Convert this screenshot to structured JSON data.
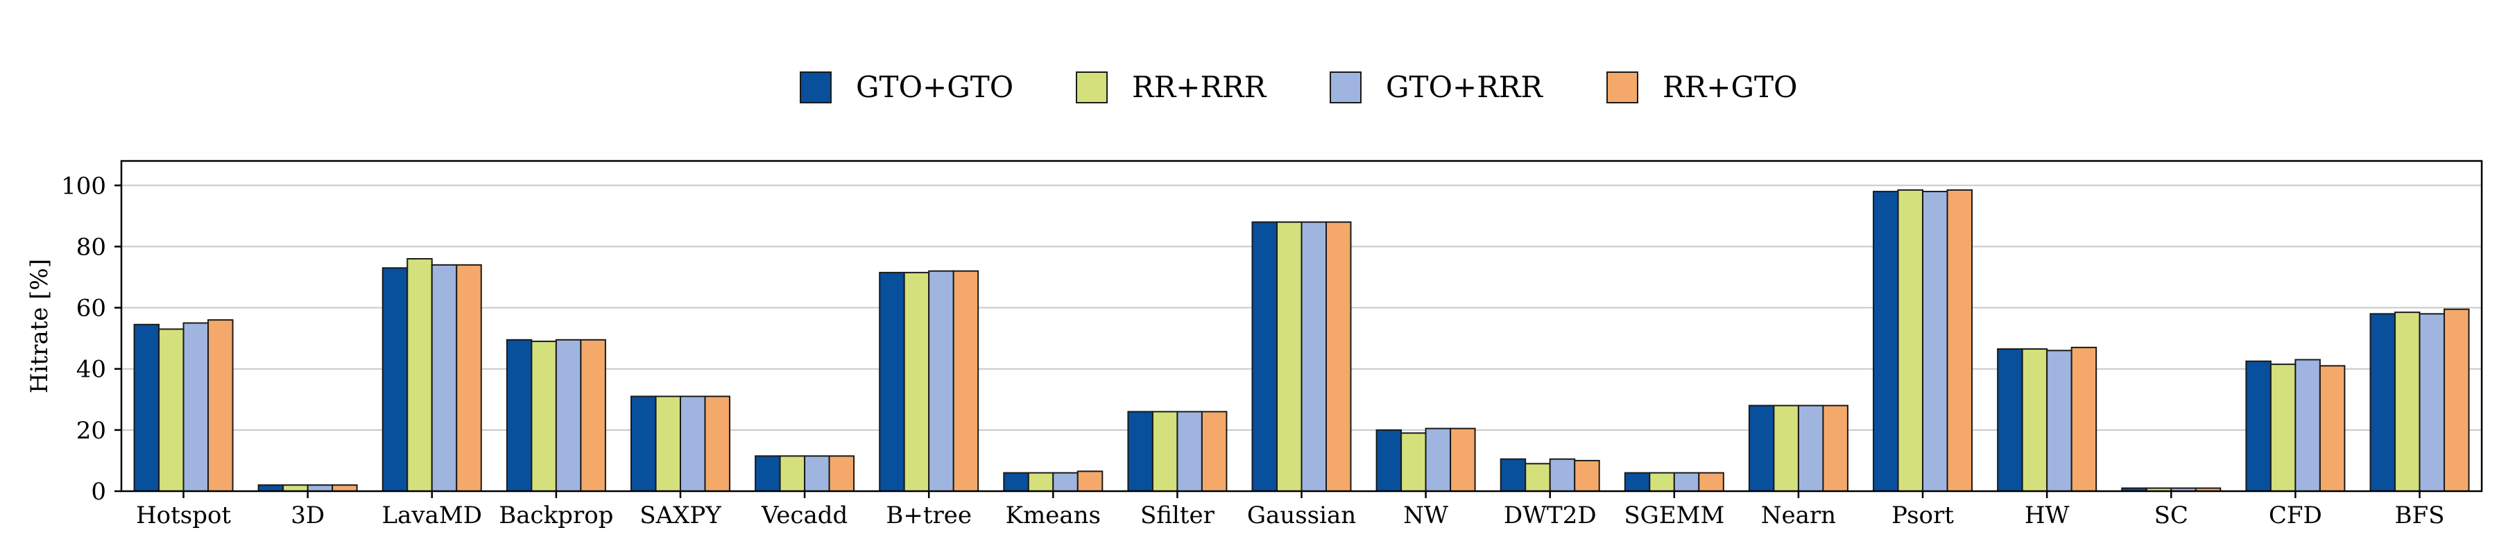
{
  "chart_data": {
    "type": "bar",
    "ylabel": "Hitrate [%]",
    "ylim": [
      0,
      108
    ],
    "yticks": [
      0,
      20,
      40,
      60,
      80,
      100
    ],
    "grid": "horizontal",
    "legend_position": "top-center",
    "categories": [
      "Hotspot",
      "3D",
      "LavaMD",
      "Backprop",
      "SAXPY",
      "Vecadd",
      "B+tree",
      "Kmeans",
      "Sfilter",
      "Gaussian",
      "NW",
      "DWT2D",
      "SGEMM",
      "Nearn",
      "Psort",
      "HW",
      "SC",
      "CFD",
      "BFS"
    ],
    "series": [
      {
        "name": "GTO+GTO",
        "color": "#084f9c",
        "values": [
          54.5,
          2,
          73,
          49.5,
          31,
          11.5,
          71.5,
          6,
          26,
          88,
          20,
          10.5,
          6,
          28,
          98,
          46.5,
          1,
          42.5,
          58
        ]
      },
      {
        "name": "RR+RRR",
        "color": "#d4e07c",
        "values": [
          53,
          2,
          76,
          49,
          31,
          11.5,
          71.5,
          6,
          26,
          88,
          19,
          9,
          6,
          28,
          98.5,
          46.5,
          1,
          41.5,
          58.5
        ]
      },
      {
        "name": "GTO+RRR",
        "color": "#9fb5e0",
        "values": [
          55,
          2,
          74,
          49.5,
          31,
          11.5,
          72,
          6,
          26,
          88,
          20.5,
          10.5,
          6,
          28,
          98,
          46,
          1,
          43,
          58
        ]
      },
      {
        "name": "RR+GTO",
        "color": "#f4a96a",
        "values": [
          56,
          2,
          74,
          49.5,
          31,
          11.5,
          72,
          6.5,
          26,
          88,
          20.5,
          10,
          6,
          28,
          98.5,
          47,
          1,
          41,
          59.5
        ]
      }
    ]
  }
}
